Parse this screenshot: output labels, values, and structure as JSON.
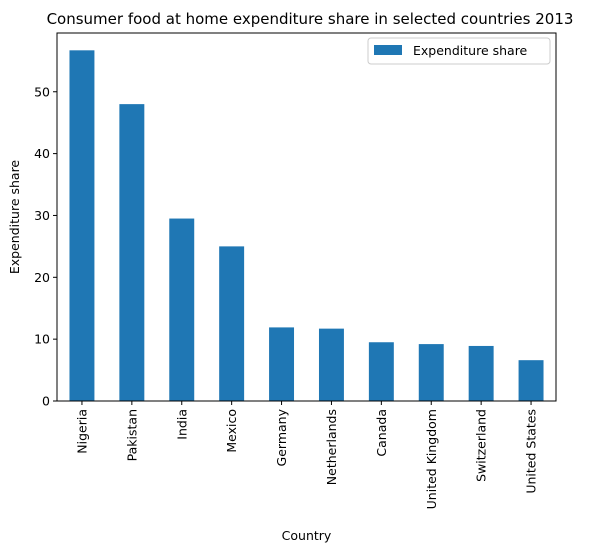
{
  "chart_data": {
    "type": "bar",
    "title": "Consumer food at home expenditure share in selected countries 2013",
    "xlabel": "Country",
    "ylabel": "Expenditure share",
    "categories": [
      "Nigeria",
      "Pakistan",
      "India",
      "Mexico",
      "Germany",
      "Netherlands",
      "Canada",
      "United Kingdom",
      "Switzerland",
      "United States"
    ],
    "series": [
      {
        "name": "Expenditure share",
        "color": "#1f77b4",
        "values": [
          56.7,
          48.0,
          29.5,
          25.0,
          11.9,
          11.7,
          9.5,
          9.2,
          8.9,
          6.6
        ]
      }
    ],
    "ylim": [
      0,
      59.5
    ],
    "yticks": [
      0,
      10,
      20,
      30,
      40,
      50
    ],
    "grid": false,
    "legend": "top-right"
  }
}
